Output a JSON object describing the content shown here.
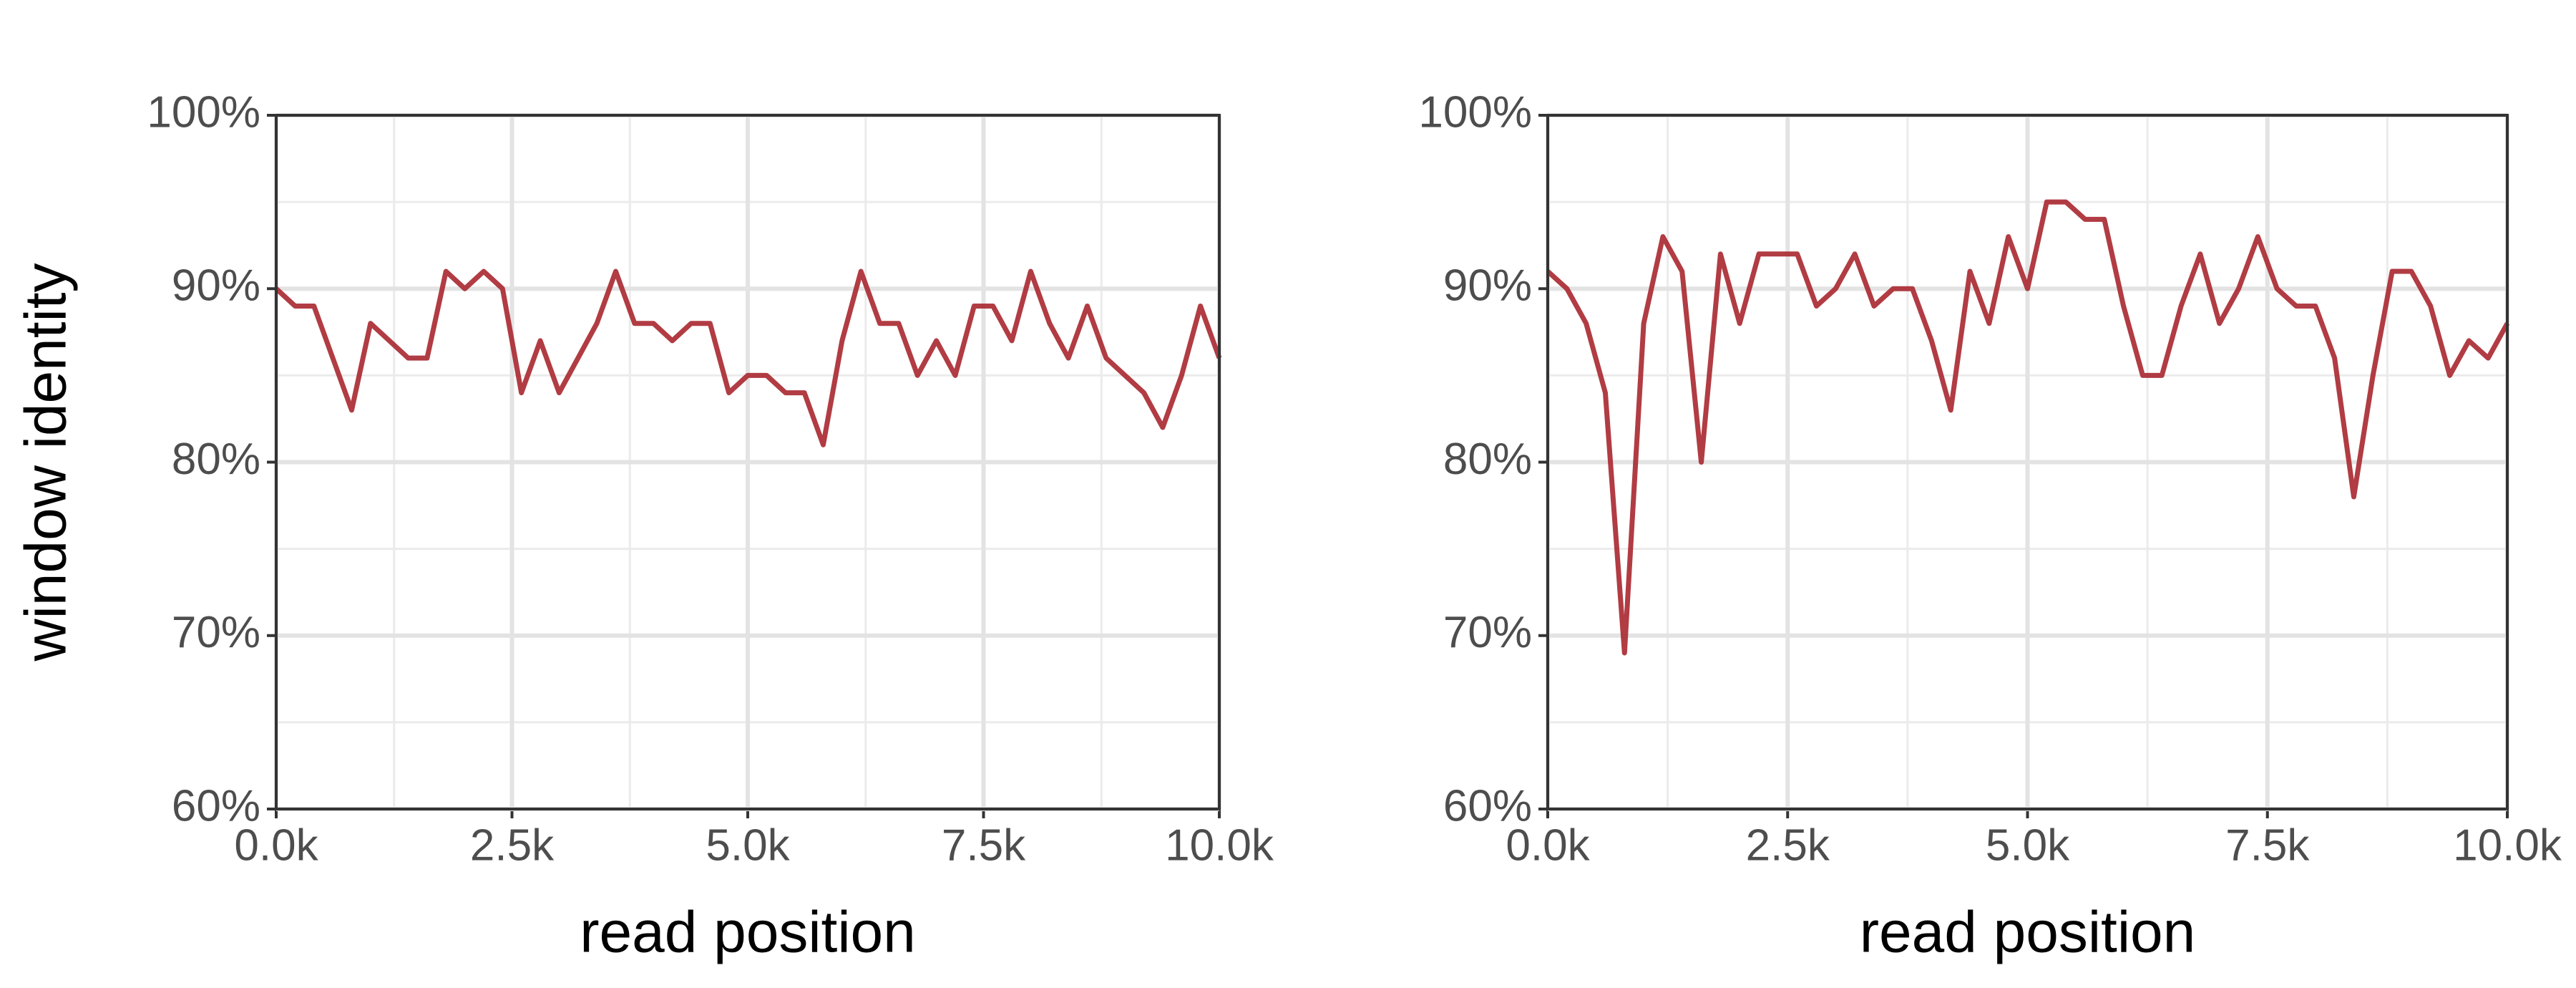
{
  "chart_data": [
    {
      "type": "line",
      "y_label": "window identity",
      "x_label": "read position",
      "xlim": [
        0,
        10000
      ],
      "ylim": [
        60,
        100
      ],
      "xticks": [
        {
          "value": 0,
          "label": "0.0k"
        },
        {
          "value": 2500,
          "label": "2.5k"
        },
        {
          "value": 5000,
          "label": "5.0k"
        },
        {
          "value": 7500,
          "label": "7.5k"
        },
        {
          "value": 10000,
          "label": "10.0k"
        }
      ],
      "yticks": [
        {
          "value": 60,
          "label": "60%"
        },
        {
          "value": 70,
          "label": "70%"
        },
        {
          "value": 80,
          "label": "80%"
        },
        {
          "value": 90,
          "label": "90%"
        },
        {
          "value": 100,
          "label": "100%"
        }
      ],
      "xminor": [
        1250,
        3750,
        6250,
        8750
      ],
      "yminor": [
        65,
        75,
        85,
        95
      ],
      "grid": true,
      "color": "#a8272f",
      "x": [
        0,
        200,
        400,
        600,
        800,
        1000,
        1200,
        1400,
        1600,
        1800,
        2000,
        2200,
        2400,
        2600,
        2800,
        3000,
        3200,
        3400,
        3600,
        3800,
        4000,
        4200,
        4400,
        4600,
        4800,
        5000,
        5200,
        5400,
        5600,
        5800,
        6000,
        6200,
        6400,
        6600,
        6800,
        7000,
        7200,
        7400,
        7600,
        7800,
        8000,
        8200,
        8400,
        8600,
        8800,
        9000,
        9200,
        9400,
        9600,
        9800,
        10000
      ],
      "values": [
        90,
        89,
        89,
        86,
        83,
        88,
        87,
        86,
        86,
        91,
        90,
        91,
        90,
        84,
        87,
        84,
        86,
        88,
        91,
        88,
        88,
        87,
        88,
        88,
        84,
        85,
        85,
        84,
        84,
        81,
        87,
        91,
        88,
        88,
        85,
        87,
        85,
        89,
        89,
        87,
        91,
        88,
        86,
        89,
        86,
        85,
        84,
        82,
        85,
        89,
        86
      ]
    },
    {
      "type": "line",
      "x_label": "read position",
      "xlim": [
        0,
        10000
      ],
      "ylim": [
        60,
        100
      ],
      "xticks": [
        {
          "value": 0,
          "label": "0.0k"
        },
        {
          "value": 2500,
          "label": "2.5k"
        },
        {
          "value": 5000,
          "label": "5.0k"
        },
        {
          "value": 7500,
          "label": "7.5k"
        },
        {
          "value": 10000,
          "label": "10.0k"
        }
      ],
      "yticks": [
        {
          "value": 60,
          "label": "60%"
        },
        {
          "value": 70,
          "label": "70%"
        },
        {
          "value": 80,
          "label": "80%"
        },
        {
          "value": 90,
          "label": "90%"
        },
        {
          "value": 100,
          "label": "100%"
        }
      ],
      "xminor": [
        1250,
        3750,
        6250,
        8750
      ],
      "yminor": [
        65,
        75,
        85,
        95
      ],
      "grid": true,
      "color": "#a8272f",
      "x": [
        0,
        200,
        400,
        600,
        800,
        1000,
        1200,
        1400,
        1600,
        1800,
        2000,
        2200,
        2400,
        2600,
        2800,
        3000,
        3200,
        3400,
        3600,
        3800,
        4000,
        4200,
        4400,
        4600,
        4800,
        5000,
        5200,
        5400,
        5600,
        5800,
        6000,
        6200,
        6400,
        6600,
        6800,
        7000,
        7200,
        7400,
        7600,
        7800,
        8000,
        8200,
        8400,
        8600,
        8800,
        9000,
        9200,
        9400,
        9600,
        9800,
        10000
      ],
      "values": [
        91,
        90,
        88,
        84,
        69,
        88,
        93,
        91,
        80,
        92,
        88,
        92,
        92,
        92,
        89,
        90,
        92,
        89,
        90,
        90,
        87,
        83,
        91,
        88,
        93,
        90,
        95,
        95,
        94,
        94,
        89,
        85,
        85,
        89,
        92,
        88,
        90,
        93,
        90,
        89,
        89,
        86,
        78,
        85,
        91,
        91,
        89,
        85,
        87,
        86,
        88
      ]
    }
  ]
}
